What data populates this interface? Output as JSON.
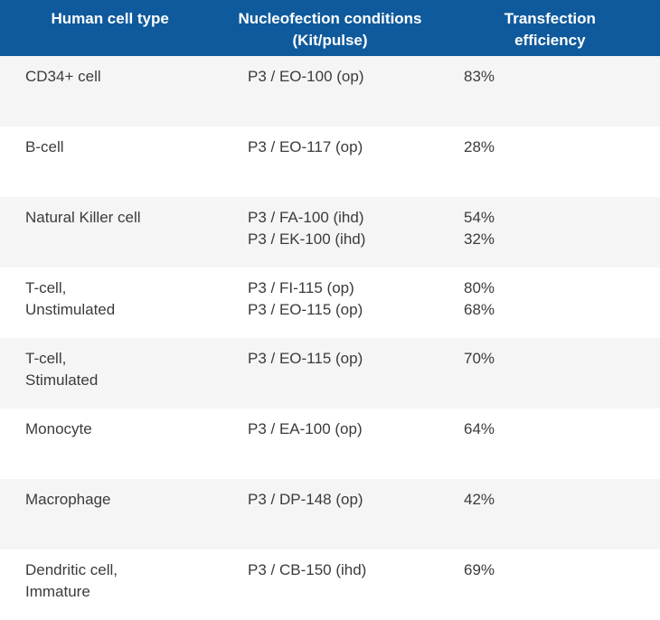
{
  "chart_data": {
    "type": "table",
    "columns": [
      "Human cell type",
      "Nucleofection conditions (Kit/pulse)",
      "Transfection efficiency"
    ],
    "rows": [
      {
        "cell_type": [
          "CD34+ cell"
        ],
        "conditions": [
          "P3 / EO-100 (op)"
        ],
        "efficiency": [
          "83%"
        ]
      },
      {
        "cell_type": [
          "B-cell"
        ],
        "conditions": [
          "P3 / EO-117 (op)"
        ],
        "efficiency": [
          "28%"
        ]
      },
      {
        "cell_type": [
          "Natural Killer cell"
        ],
        "conditions": [
          "P3 / FA-100 (ihd)",
          "P3 / EK-100 (ihd)"
        ],
        "efficiency": [
          "54%",
          "32%"
        ]
      },
      {
        "cell_type": [
          "T-cell,",
          "Unstimulated"
        ],
        "conditions": [
          "P3 / FI-115 (op)",
          "P3 / EO-115 (op)"
        ],
        "efficiency": [
          "80%",
          "68%"
        ]
      },
      {
        "cell_type": [
          "T-cell,",
          "Stimulated"
        ],
        "conditions": [
          "P3 / EO-115 (op)"
        ],
        "efficiency": [
          "70%"
        ]
      },
      {
        "cell_type": [
          "Monocyte"
        ],
        "conditions": [
          "P3 / EA-100 (op)"
        ],
        "efficiency": [
          "64%"
        ]
      },
      {
        "cell_type": [
          "Macrophage"
        ],
        "conditions": [
          "P3 / DP-148 (op)"
        ],
        "efficiency": [
          "42%"
        ]
      },
      {
        "cell_type": [
          "Dendritic cell,",
          "Immature"
        ],
        "conditions": [
          "P3 / CB-150 (ihd)"
        ],
        "efficiency": [
          "69%"
        ]
      }
    ],
    "layout": {
      "legend": "none",
      "grid": "off",
      "striped_rows": true
    }
  },
  "header": {
    "labels": [
      "Human cell type",
      "Nucleofection conditions\n(Kit/pulse)",
      "Transfection\nefficiency"
    ]
  },
  "colors": {
    "header_bg": "#0f5a9c",
    "header_text": "#ffffff",
    "row_bg": "#ffffff",
    "row_stripe_bg": "#f5f5f5",
    "body_text": "#3b3b3b"
  }
}
